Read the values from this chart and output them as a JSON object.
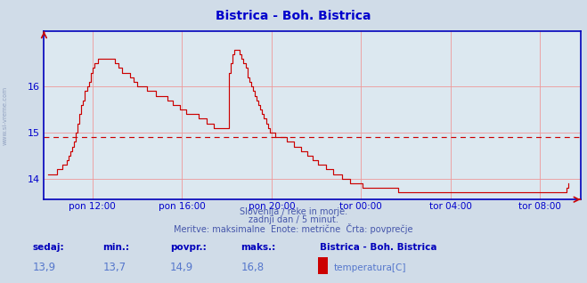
{
  "title": "Bistrica - Boh. Bistrica",
  "title_color": "#0000cc",
  "bg_color": "#d0dce8",
  "plot_bg_color": "#dce8f0",
  "grid_color": "#ee9999",
  "line_color": "#cc0000",
  "avg_line_color": "#cc0000",
  "avg_value": 14.9,
  "x_tick_labels": [
    "pon 12:00",
    "pon 16:00",
    "pon 20:00",
    "tor 00:00",
    "tor 04:00",
    "tor 08:00"
  ],
  "x_tick_positions": [
    24,
    72,
    120,
    168,
    216,
    264
  ],
  "yticks": [
    14,
    15,
    16
  ],
  "ylim": [
    13.55,
    17.2
  ],
  "xlim": [
    -2,
    286
  ],
  "footer_line1": "Slovenija / reke in morje.",
  "footer_line2": "zadnji dan / 5 minut.",
  "footer_line3": "Meritve: maksimalne  Enote: metrične  Črta: povprečje",
  "footer_color": "#4455aa",
  "label_sedaj": "sedaj:",
  "label_min": "min.:",
  "label_povpr": "povpr.:",
  "label_maks": "maks.:",
  "val_sedaj": "13,9",
  "val_min": "13,7",
  "val_povpr": "14,9",
  "val_maks": "16,8",
  "legend_station": "Bistrica - Boh. Bistrica",
  "legend_param": "temperatura[C]",
  "legend_color": "#cc0000",
  "ylabel_text": "www.si-vreme.com",
  "temperature_data": [
    14.1,
    14.1,
    14.1,
    14.1,
    14.1,
    14.2,
    14.2,
    14.2,
    14.3,
    14.3,
    14.4,
    14.5,
    14.6,
    14.7,
    14.8,
    15.0,
    15.2,
    15.4,
    15.6,
    15.7,
    15.9,
    16.0,
    16.1,
    16.3,
    16.4,
    16.5,
    16.5,
    16.6,
    16.6,
    16.6,
    16.6,
    16.6,
    16.6,
    16.6,
    16.6,
    16.6,
    16.5,
    16.5,
    16.4,
    16.4,
    16.3,
    16.3,
    16.3,
    16.3,
    16.2,
    16.2,
    16.1,
    16.1,
    16.0,
    16.0,
    16.0,
    16.0,
    16.0,
    15.9,
    15.9,
    15.9,
    15.9,
    15.9,
    15.8,
    15.8,
    15.8,
    15.8,
    15.8,
    15.8,
    15.7,
    15.7,
    15.7,
    15.6,
    15.6,
    15.6,
    15.6,
    15.5,
    15.5,
    15.5,
    15.4,
    15.4,
    15.4,
    15.4,
    15.4,
    15.4,
    15.4,
    15.3,
    15.3,
    15.3,
    15.3,
    15.2,
    15.2,
    15.2,
    15.2,
    15.1,
    15.1,
    15.1,
    15.1,
    15.1,
    15.1,
    15.1,
    15.1,
    16.3,
    16.5,
    16.7,
    16.8,
    16.8,
    16.8,
    16.7,
    16.6,
    16.5,
    16.4,
    16.2,
    16.1,
    16.0,
    15.9,
    15.8,
    15.7,
    15.6,
    15.5,
    15.4,
    15.3,
    15.2,
    15.1,
    15.0,
    15.0,
    15.0,
    14.9,
    14.9,
    14.9,
    14.9,
    14.9,
    14.9,
    14.8,
    14.8,
    14.8,
    14.8,
    14.7,
    14.7,
    14.7,
    14.7,
    14.6,
    14.6,
    14.6,
    14.5,
    14.5,
    14.5,
    14.4,
    14.4,
    14.4,
    14.3,
    14.3,
    14.3,
    14.3,
    14.2,
    14.2,
    14.2,
    14.2,
    14.1,
    14.1,
    14.1,
    14.1,
    14.1,
    14.0,
    14.0,
    14.0,
    14.0,
    13.9,
    13.9,
    13.9,
    13.9,
    13.9,
    13.9,
    13.9,
    13.8,
    13.8,
    13.8,
    13.8,
    13.8,
    13.8,
    13.8,
    13.8,
    13.8,
    13.8,
    13.8,
    13.8,
    13.8,
    13.8,
    13.8,
    13.8,
    13.8,
    13.8,
    13.8,
    13.7,
    13.7,
    13.7,
    13.7,
    13.7,
    13.7,
    13.7,
    13.7,
    13.7,
    13.7,
    13.7,
    13.7,
    13.7,
    13.7,
    13.7,
    13.7,
    13.7,
    13.7,
    13.7,
    13.7,
    13.7,
    13.7,
    13.7,
    13.7,
    13.7,
    13.7,
    13.7,
    13.7,
    13.7,
    13.7,
    13.7,
    13.7,
    13.7,
    13.7,
    13.7,
    13.7,
    13.7,
    13.7,
    13.7,
    13.7,
    13.7,
    13.7,
    13.7,
    13.7,
    13.7,
    13.7,
    13.7,
    13.7,
    13.7,
    13.7,
    13.7,
    13.7,
    13.7,
    13.7,
    13.7,
    13.7,
    13.7,
    13.7,
    13.7,
    13.7,
    13.7,
    13.7,
    13.7,
    13.7,
    13.7,
    13.7,
    13.7,
    13.7,
    13.7,
    13.7,
    13.7,
    13.7,
    13.7,
    13.7,
    13.7,
    13.7,
    13.7,
    13.7,
    13.7,
    13.7,
    13.7,
    13.7,
    13.7,
    13.7,
    13.7,
    13.7,
    13.7,
    13.7,
    13.7,
    13.7,
    13.8,
    13.9
  ]
}
